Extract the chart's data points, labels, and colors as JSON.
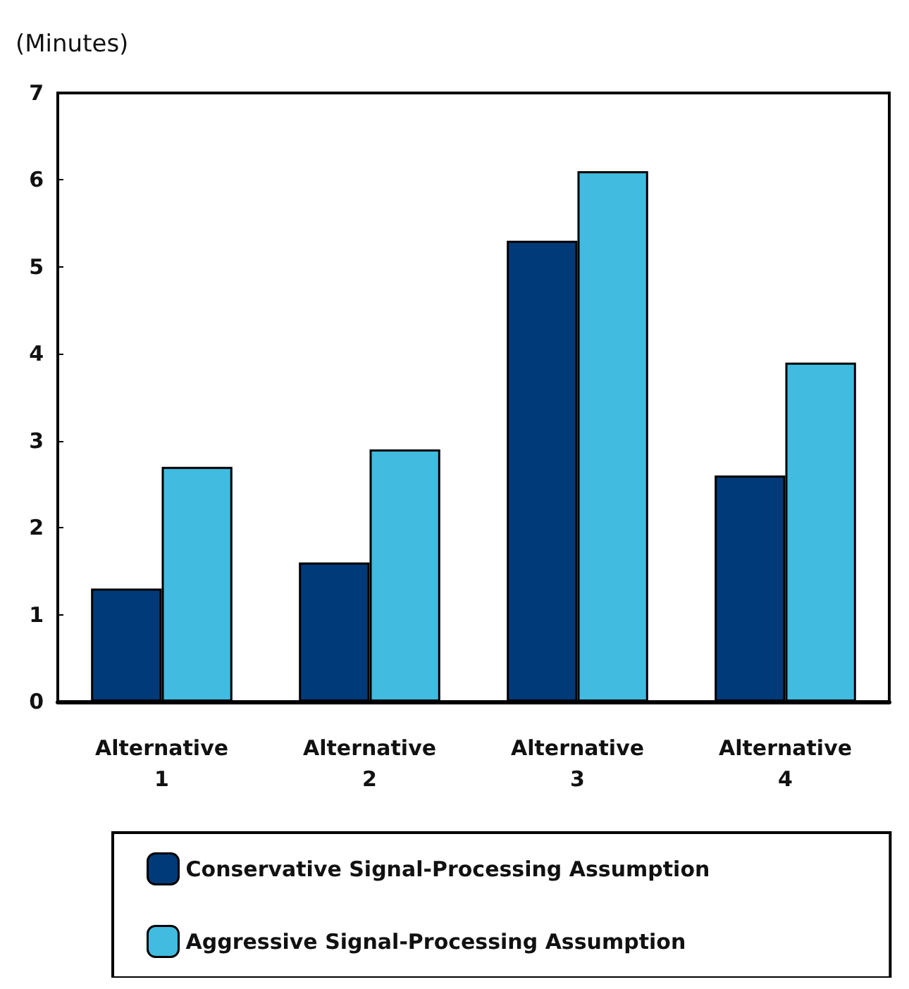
{
  "chart_data": {
    "type": "bar",
    "ylabel": "(Minutes)",
    "categories": [
      "Alternative\n1",
      "Alternative\n2",
      "Alternative\n3",
      "Alternative\n4"
    ],
    "series": [
      {
        "name": "Conservative Signal-Processing Assumption",
        "color": "#003a78",
        "values": [
          1.3,
          1.6,
          5.3,
          2.6
        ]
      },
      {
        "name": "Aggressive Signal-Processing Assumption",
        "color": "#41bbe0",
        "values": [
          2.7,
          2.9,
          6.1,
          3.9
        ]
      }
    ],
    "ylim": [
      0,
      7
    ],
    "yticks": [
      0,
      1,
      2,
      3,
      4,
      5,
      6,
      7
    ],
    "grid": false,
    "legend": "bottom"
  }
}
